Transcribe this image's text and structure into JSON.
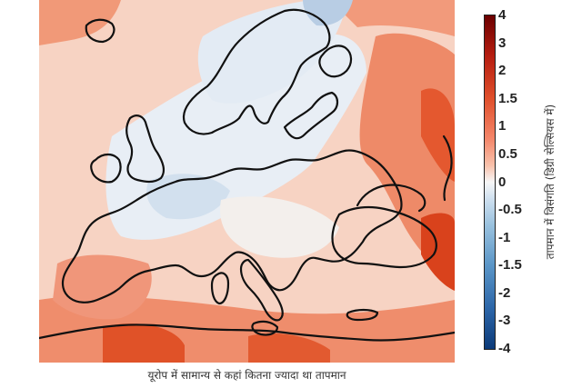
{
  "caption": "यूरोप में सामान्य से कहां कितना ज्यादा था तापमान",
  "colorbar": {
    "label": "तापमान में विसंगति (डिग्री सेल्सियस में)",
    "ticks": [
      "4",
      "3",
      "2",
      "1.5",
      "1",
      "0.5",
      "0",
      "-0.5",
      "-1",
      "-1.5",
      "-2",
      "-3",
      "-4"
    ],
    "min": -4,
    "max": 4
  },
  "colors": {
    "warm_strong": "#d63b1c",
    "warm": "#f08a6a",
    "neutral": "#f3f1ef",
    "cool": "#c9dbec",
    "coastline": "#111111"
  }
}
